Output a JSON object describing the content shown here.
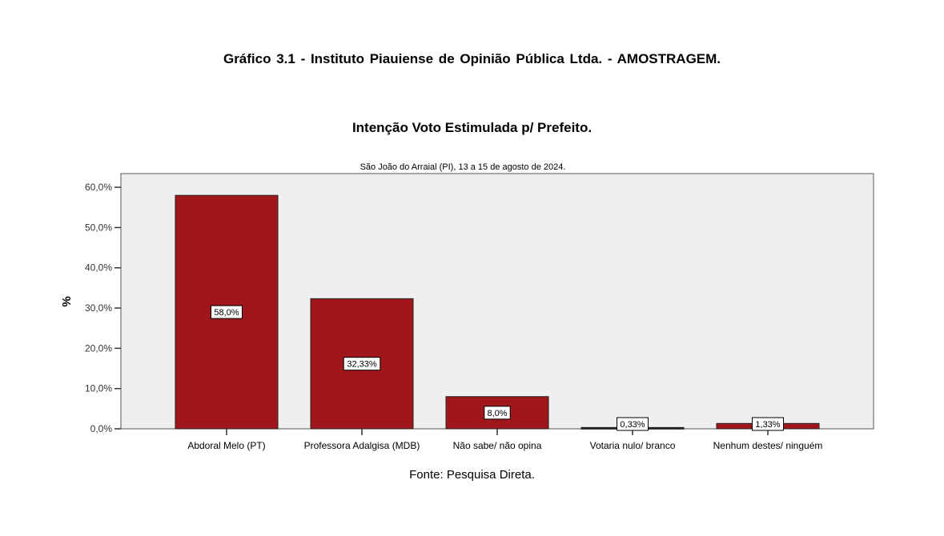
{
  "title": "Gráfico   3.1  -   Instituto Piauiense de Opinião Pública Ltda. - AMOSTRAGEM.",
  "chart_data": {
    "type": "bar",
    "title": "Intenção Voto Estimulada p/ Prefeito.",
    "subtitle": "São João do Arraial (PI), 13 a 15 de agosto de 2024.",
    "xlabel": "",
    "ylabel": "%",
    "ylim": [
      0,
      63.4
    ],
    "yticks": [
      0,
      10,
      20,
      30,
      40,
      50,
      60
    ],
    "ytick_labels": [
      "0,0%",
      "10,0%",
      "20,0%",
      "30,0%",
      "40,0%",
      "50,0%",
      "60,0%"
    ],
    "categories": [
      "Abdoral Melo (PT)",
      "Professora Adalgisa (MDB)",
      "Não sabe/ não opina",
      "Votaria nulo/ branco",
      "Nenhum destes/ ninguém"
    ],
    "values": [
      58.0,
      32.33,
      8.0,
      0.33,
      1.33
    ],
    "data_labels": [
      "58,0%",
      "32,33%",
      "8,0%",
      "0,33%",
      "1,33%"
    ],
    "bar_color": "#a0161b",
    "plot_background": "#efeff0",
    "grid": false
  },
  "source": "Fonte: Pesquisa Direta."
}
